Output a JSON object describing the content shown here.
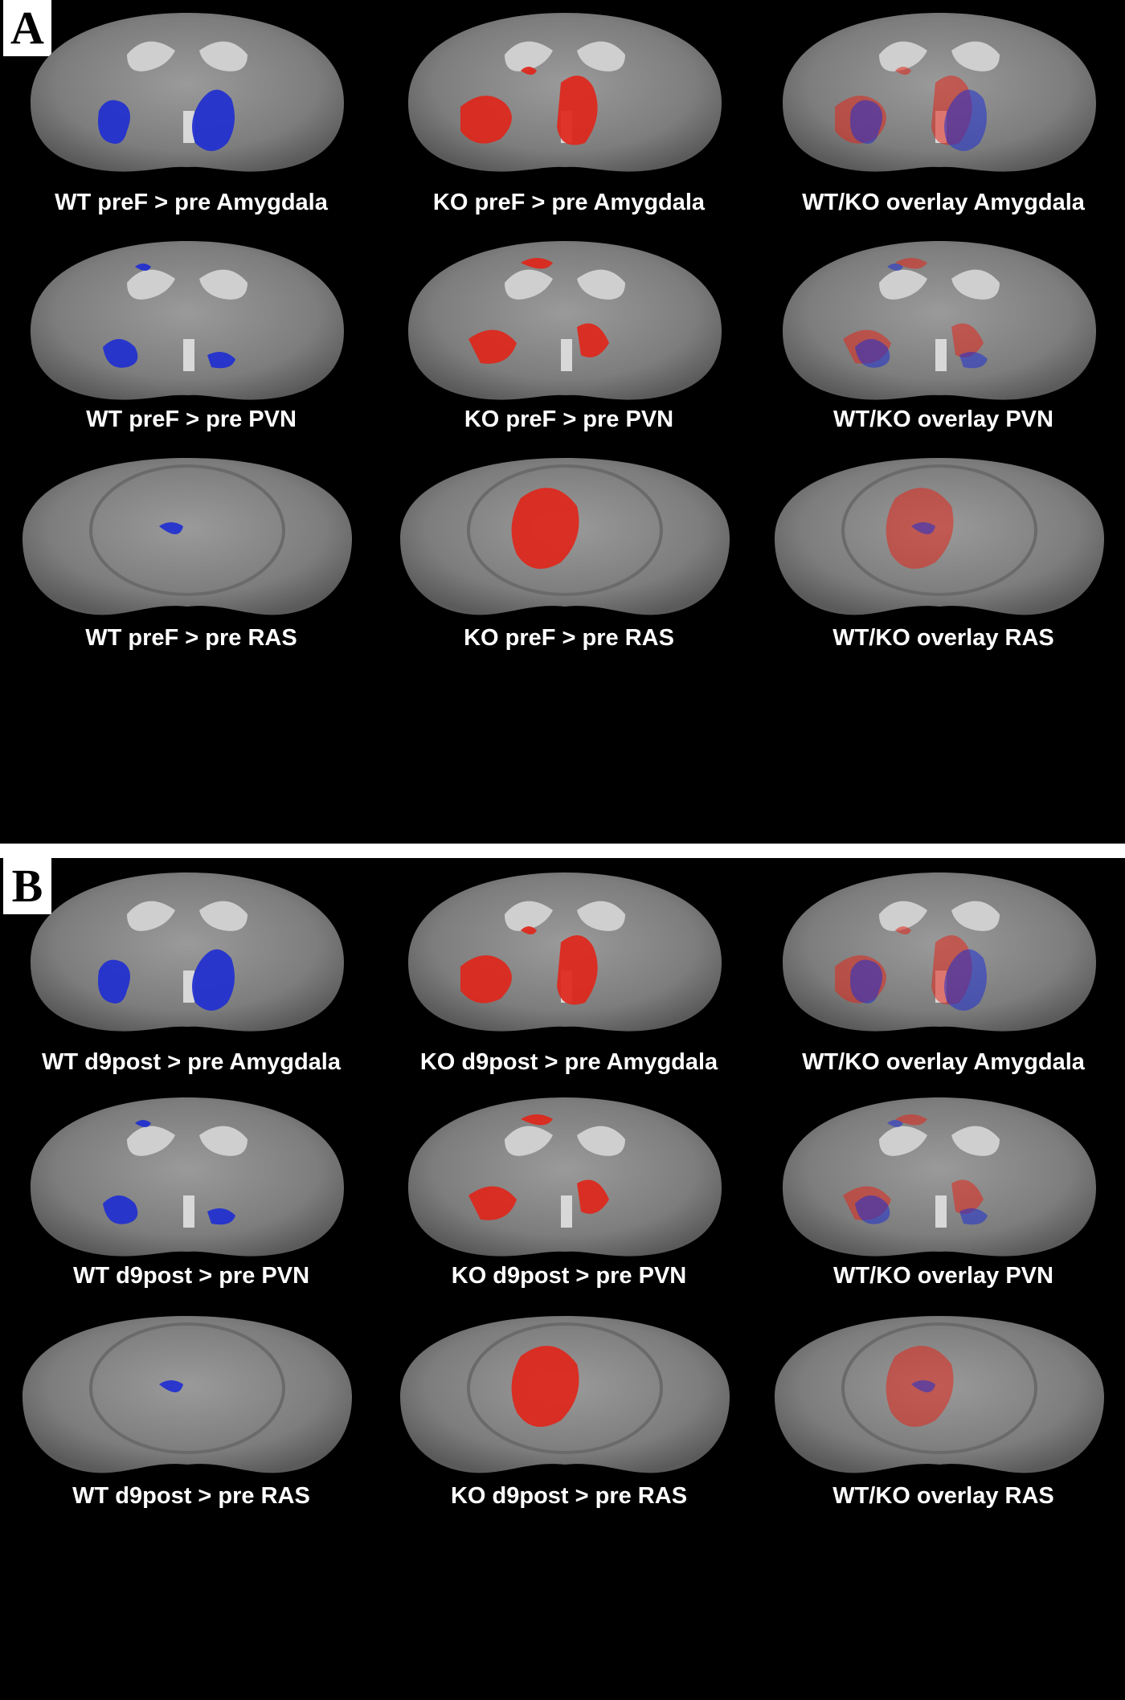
{
  "panels": [
    {
      "letter": "A",
      "images": [
        {
          "caption": "WT preF > pre Amygdala",
          "overlay": "blue",
          "section": "anterior"
        },
        {
          "caption": "KO preF > pre Amygdala",
          "overlay": "red",
          "section": "anterior"
        },
        {
          "caption": "WT/KO overlay Amygdala",
          "overlay": "both",
          "section": "anterior"
        },
        {
          "caption": "WT preF > pre PVN",
          "overlay": "blue",
          "section": "anterior"
        },
        {
          "caption": "KO preF > pre PVN",
          "overlay": "red",
          "section": "anterior"
        },
        {
          "caption": "WT/KO overlay PVN",
          "overlay": "both",
          "section": "anterior"
        },
        {
          "caption": "WT preF > pre RAS",
          "overlay": "blue",
          "section": "posterior"
        },
        {
          "caption": "KO preF > pre RAS",
          "overlay": "red",
          "section": "posterior"
        },
        {
          "caption": "WT/KO overlay RAS",
          "overlay": "both",
          "section": "posterior"
        }
      ]
    },
    {
      "letter": "B",
      "images": [
        {
          "caption": "WT d9post > pre Amygdala",
          "overlay": "blue",
          "section": "anterior"
        },
        {
          "caption": "KO d9post > pre Amygdala",
          "overlay": "red",
          "section": "anterior"
        },
        {
          "caption": "WT/KO overlay Amygdala",
          "overlay": "both",
          "section": "anterior"
        },
        {
          "caption": "WT d9post > pre PVN",
          "overlay": "blue",
          "section": "anterior"
        },
        {
          "caption": "KO d9post > pre PVN",
          "overlay": "red",
          "section": "anterior"
        },
        {
          "caption": "WT/KO overlay PVN",
          "overlay": "both",
          "section": "anterior"
        },
        {
          "caption": "WT d9post > pre RAS",
          "overlay": "blue",
          "section": "posterior"
        },
        {
          "caption": "KO d9post > pre RAS",
          "overlay": "red",
          "section": "posterior"
        },
        {
          "caption": "WT/KO overlay RAS",
          "overlay": "both",
          "section": "posterior"
        }
      ]
    }
  ],
  "colors": {
    "wt_activation": "#1f2fd0",
    "ko_activation": "#e0261a",
    "overlay_mix": "#7a4bb8",
    "background": "#000000",
    "divider": "#ffffff"
  }
}
